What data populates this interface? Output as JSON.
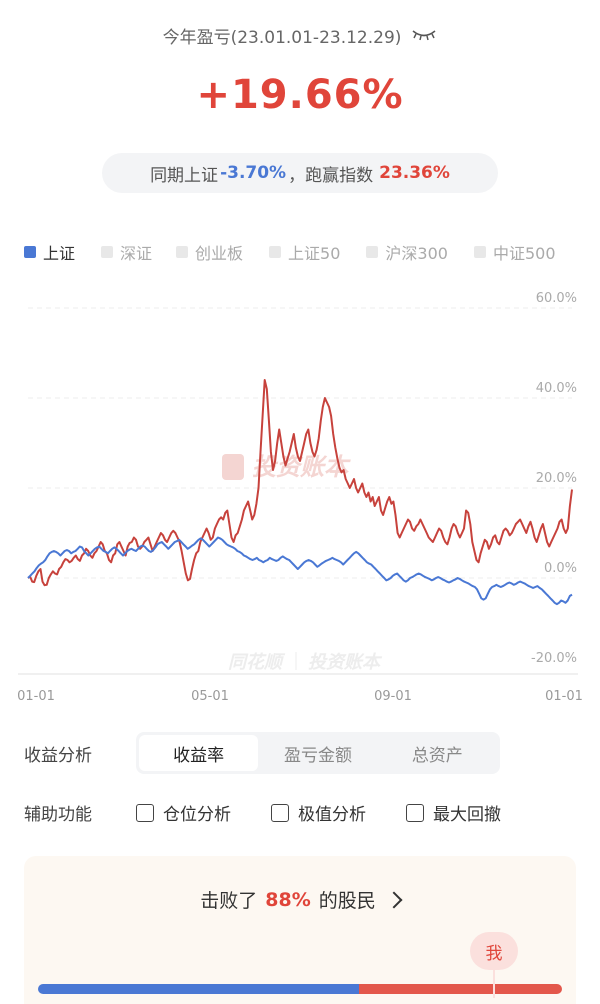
{
  "header": {
    "period_label": "今年盈亏(23.01.01-23.12.29)",
    "total_return": "+19.66%"
  },
  "compare": {
    "prefix": "同期上证",
    "index_return": "-3.70%",
    "middle": "，跑赢指数",
    "outperform": "23.36%"
  },
  "legend": [
    {
      "label": "上证",
      "active": true
    },
    {
      "label": "深证",
      "active": false
    },
    {
      "label": "创业板",
      "active": false
    },
    {
      "label": "上证50",
      "active": false
    },
    {
      "label": "沪深300",
      "active": false
    },
    {
      "label": "中证500",
      "active": false
    }
  ],
  "chart_data": {
    "type": "line",
    "y_ticks": [
      "60.0%",
      "40.0%",
      "20.0%",
      "0.0%",
      "-20.0%"
    ],
    "x_ticks": [
      "01-01",
      "05-01",
      "09-01",
      "01-01"
    ],
    "ylim": [
      -20,
      60
    ],
    "watermarks": [
      "投资账本",
      "同花顺",
      "投资账本"
    ],
    "series": [
      {
        "name": "",
        "color": "#c7423c",
        "values": [
          0.0,
          0.3,
          -0.8,
          -0.9,
          0.5,
          1.5,
          2.0,
          -0.8,
          -1.6,
          -1.5,
          0.0,
          0.8,
          1.5,
          1.0,
          0.8,
          2.0,
          2.5,
          3.5,
          4.2,
          4.0,
          3.5,
          3.8,
          4.5,
          5.0,
          4.2,
          3.8,
          5.0,
          5.5,
          6.5,
          6.0,
          5.0,
          4.5,
          5.5,
          6.0,
          7.0,
          8.0,
          7.5,
          6.0,
          5.5,
          4.0,
          3.5,
          5.0,
          5.5,
          7.5,
          8.0,
          7.0,
          6.0,
          5.0,
          7.0,
          7.8,
          8.0,
          9.0,
          8.5,
          7.0,
          6.5,
          7.0,
          8.0,
          8.5,
          9.0,
          7.5,
          6.0,
          7.0,
          8.0,
          9.0,
          10.0,
          9.5,
          8.5,
          8.0,
          9.0,
          10.0,
          10.5,
          10.0,
          9.0,
          8.0,
          6.0,
          3.5,
          1.0,
          -0.5,
          -0.2,
          2.0,
          4.0,
          5.5,
          6.0,
          8.0,
          9.0,
          10.0,
          11.0,
          10.0,
          8.5,
          9.0,
          11.0,
          12.0,
          13.0,
          13.5,
          13.0,
          14.5,
          15.0,
          12.0,
          9.0,
          8.0,
          9.5,
          10.0,
          11.5,
          13.0,
          15.0,
          16.0,
          17.0,
          15.0,
          13.0,
          14.0,
          16.5,
          20.0,
          28.0,
          36.0,
          44.0,
          42.0,
          35.0,
          28.0,
          24.0,
          26.0,
          30.0,
          33.0,
          30.0,
          27.0,
          25.0,
          26.5,
          28.0,
          30.0,
          32.0,
          29.0,
          27.0,
          26.0,
          28.0,
          30.0,
          32.0,
          33.0,
          30.0,
          28.0,
          27.0,
          28.5,
          31.0,
          35.0,
          38.0,
          40.0,
          39.0,
          38.0,
          36.0,
          32.0,
          29.0,
          26.5,
          24.5,
          23.5,
          24.0,
          22.0,
          21.0,
          20.0,
          21.0,
          22.0,
          20.0,
          19.0,
          20.0,
          21.0,
          19.0,
          18.0,
          19.0,
          17.0,
          18.0,
          16.0,
          17.0,
          18.0,
          15.0,
          14.0,
          15.5,
          17.0,
          18.0,
          16.5,
          17.0,
          14.0,
          10.0,
          9.0,
          10.0,
          11.0,
          12.0,
          13.0,
          12.5,
          11.0,
          10.5,
          11.5,
          12.0,
          13.0,
          12.0,
          11.0,
          10.0,
          9.0,
          8.5,
          8.0,
          9.0,
          10.0,
          11.0,
          10.5,
          9.0,
          8.0,
          7.5,
          9.0,
          11.0,
          12.0,
          11.5,
          10.0,
          9.0,
          10.0,
          11.0,
          15.0,
          14.5,
          12.0,
          8.0,
          6.0,
          4.0,
          3.5,
          5.5,
          7.0,
          8.5,
          8.0,
          6.5,
          7.5,
          9.0,
          9.5,
          8.0,
          7.5,
          9.0,
          10.5,
          11.0,
          10.5,
          9.5,
          10.0,
          11.0,
          12.0,
          12.5,
          13.0,
          12.0,
          11.0,
          10.0,
          11.5,
          12.5,
          11.0,
          9.0,
          8.0,
          9.5,
          11.0,
          12.0,
          10.0,
          8.0,
          7.0,
          8.0,
          9.0,
          10.0,
          11.0,
          12.5,
          13.0,
          11.0,
          10.0,
          11.0,
          16.0,
          19.66
        ]
      },
      {
        "name": "上证",
        "color": "#4a78d4",
        "values": [
          0.0,
          0.5,
          1.0,
          1.5,
          2.2,
          2.8,
          3.2,
          3.5,
          4.0,
          4.8,
          5.5,
          5.8,
          6.0,
          5.8,
          5.5,
          5.0,
          5.5,
          6.0,
          6.2,
          6.0,
          5.5,
          5.8,
          6.0,
          6.5,
          7.0,
          6.8,
          6.0,
          5.5,
          5.0,
          5.5,
          6.0,
          6.5,
          6.8,
          7.0,
          6.5,
          6.0,
          5.8,
          5.5,
          6.0,
          6.5,
          6.8,
          6.5,
          6.0,
          5.5,
          5.0,
          5.5,
          6.0,
          6.3,
          6.5,
          6.2,
          6.0,
          6.5,
          7.0,
          7.2,
          7.0,
          6.5,
          6.0,
          5.8,
          6.2,
          6.8,
          7.5,
          7.8,
          8.0,
          7.5,
          7.0,
          6.5,
          7.0,
          7.5,
          8.0,
          8.2,
          8.5,
          8.0,
          7.5,
          7.0,
          6.5,
          6.8,
          7.2,
          7.5,
          8.0,
          8.5,
          8.8,
          8.5,
          8.0,
          7.5,
          7.0,
          7.5,
          8.0,
          8.5,
          9.0,
          8.8,
          8.5,
          8.0,
          7.5,
          7.2,
          7.0,
          6.8,
          6.5,
          6.0,
          5.8,
          5.5,
          5.0,
          4.8,
          4.5,
          4.2,
          4.0,
          4.2,
          4.5,
          4.0,
          3.8,
          3.5,
          3.8,
          4.0,
          4.5,
          4.2,
          4.0,
          3.8,
          4.0,
          4.5,
          4.8,
          4.5,
          4.2,
          4.0,
          3.5,
          3.0,
          2.5,
          2.0,
          2.5,
          3.0,
          3.5,
          3.8,
          4.0,
          3.8,
          3.5,
          3.0,
          2.5,
          2.8,
          3.2,
          3.5,
          3.8,
          4.0,
          4.2,
          4.5,
          4.2,
          4.0,
          3.8,
          3.5,
          3.0,
          3.5,
          4.0,
          4.5,
          5.0,
          5.5,
          5.8,
          5.5,
          5.0,
          4.5,
          4.0,
          3.5,
          3.2,
          3.0,
          2.5,
          2.0,
          1.5,
          1.0,
          0.5,
          0.0,
          -0.5,
          -0.3,
          0.0,
          0.5,
          0.8,
          1.0,
          0.5,
          0.0,
          -0.5,
          -0.8,
          -0.5,
          0.0,
          0.2,
          0.5,
          0.8,
          1.0,
          0.8,
          0.5,
          0.2,
          0.0,
          -0.2,
          -0.5,
          -0.3,
          0.0,
          0.2,
          0.0,
          -0.3,
          -0.5,
          -0.8,
          -1.0,
          -0.8,
          -0.5,
          -0.3,
          0.0,
          -0.2,
          -0.5,
          -0.8,
          -1.0,
          -1.2,
          -1.5,
          -1.8,
          -2.0,
          -2.5,
          -3.5,
          -4.5,
          -4.8,
          -4.5,
          -3.5,
          -2.5,
          -2.0,
          -1.8,
          -1.5,
          -1.8,
          -2.0,
          -1.8,
          -1.5,
          -1.2,
          -1.0,
          -1.2,
          -1.5,
          -1.3,
          -1.0,
          -0.8,
          -1.0,
          -1.2,
          -1.5,
          -1.8,
          -2.0,
          -2.2,
          -2.0,
          -1.8,
          -2.2,
          -2.5,
          -3.0,
          -3.5,
          -4.0,
          -4.5,
          -5.0,
          -5.5,
          -5.8,
          -5.5,
          -5.0,
          -5.2,
          -5.5,
          -5.0,
          -4.0,
          -3.7
        ]
      }
    ]
  },
  "analysis": {
    "label": "收益分析",
    "tabs": [
      {
        "label": "收益率",
        "active": true
      },
      {
        "label": "盈亏金额",
        "active": false
      },
      {
        "label": "总资产",
        "active": false
      }
    ]
  },
  "aux": {
    "label": "辅助功能",
    "options": [
      "仓位分析",
      "极值分析",
      "最大回撤"
    ]
  },
  "beat": {
    "prefix": "击败了",
    "percent": "88%",
    "suffix": "的股民",
    "marker_label": "我",
    "fraction": 0.88
  }
}
